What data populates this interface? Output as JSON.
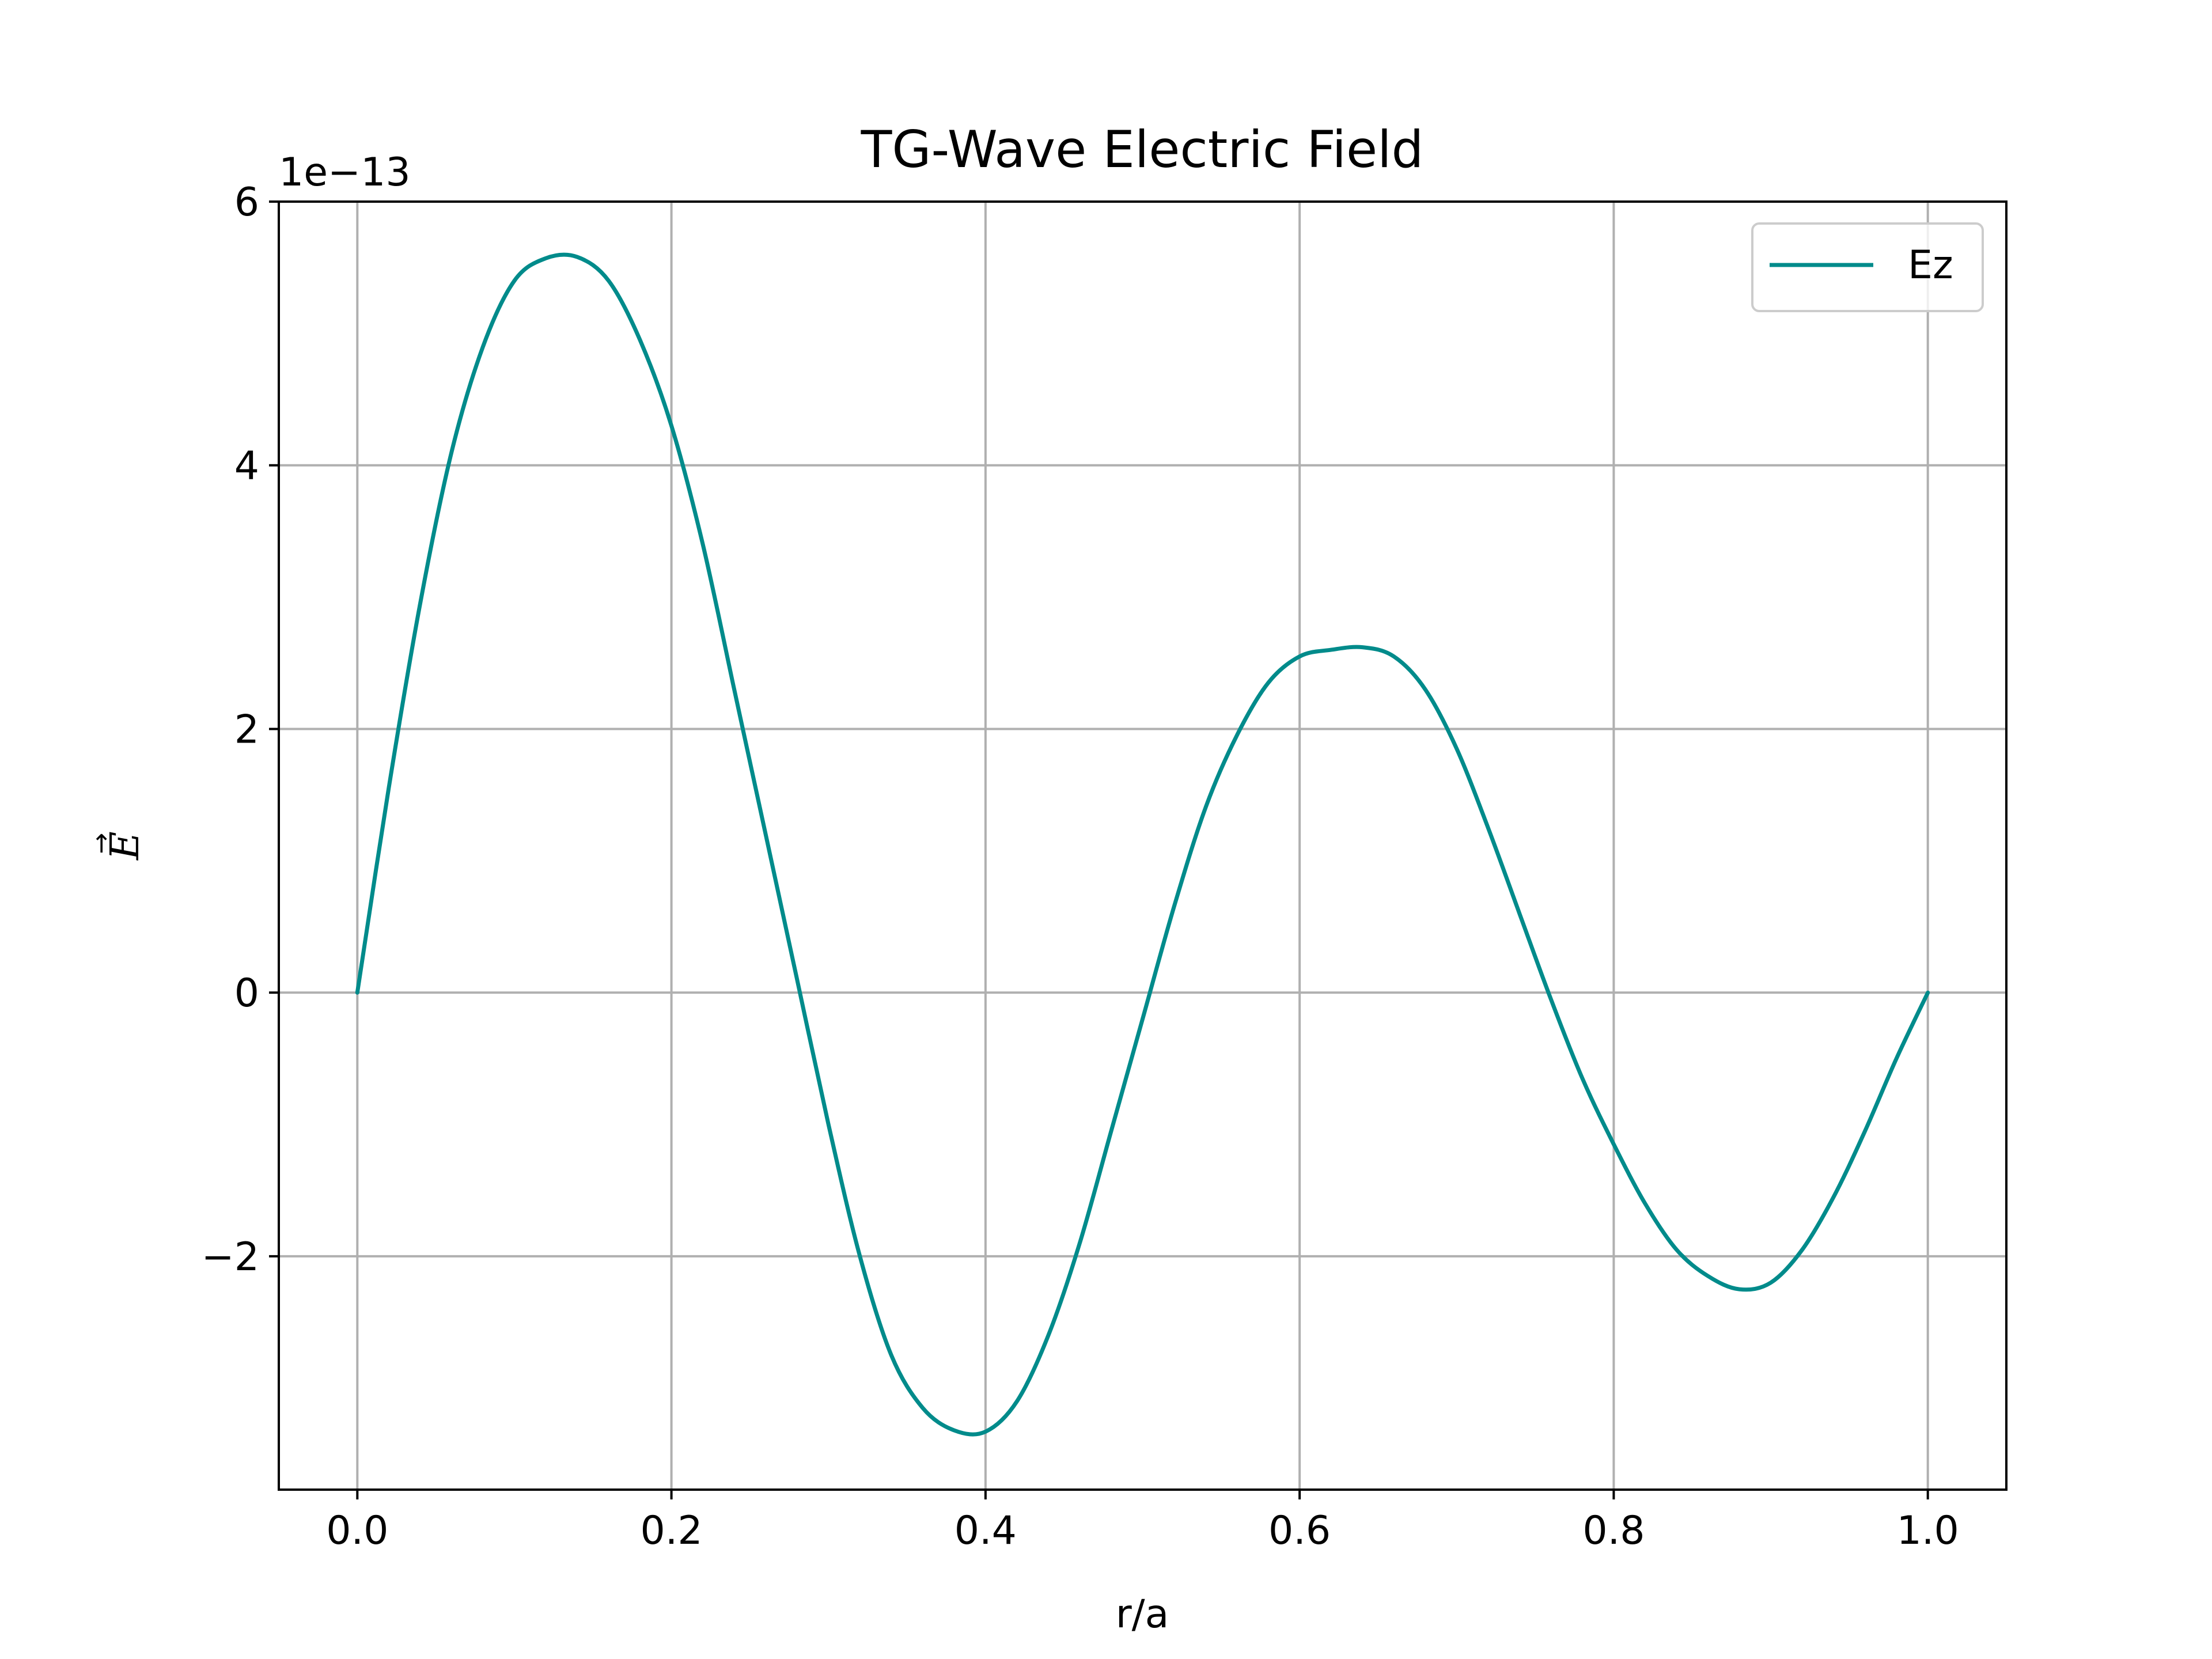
{
  "chart_data": {
    "type": "line",
    "title": "TG-Wave Electric Field",
    "xlabel": "r/a",
    "ylabel": "E",
    "ylabel_accent": "→",
    "y_offset_label": "1e−13",
    "xlim": [
      -0.05,
      1.05
    ],
    "ylim": [
      -3.77,
      6.0
    ],
    "x_ticks": [
      0.0,
      0.2,
      0.4,
      0.6,
      0.8,
      1.0
    ],
    "x_tick_labels": [
      "0.0",
      "0.2",
      "0.4",
      "0.6",
      "0.8",
      "1.0"
    ],
    "y_ticks": [
      -2,
      0,
      2,
      4,
      6
    ],
    "y_tick_labels": [
      "−2",
      "0",
      "2",
      "4",
      "6"
    ],
    "grid": true,
    "legend_position": "top-right",
    "series": [
      {
        "name": "Ez",
        "color": "#008b8b",
        "x": [
          0.0,
          0.02,
          0.04,
          0.06,
          0.08,
          0.1,
          0.12,
          0.14,
          0.16,
          0.18,
          0.2,
          0.22,
          0.24,
          0.26,
          0.28,
          0.3,
          0.32,
          0.34,
          0.36,
          0.38,
          0.4,
          0.42,
          0.44,
          0.46,
          0.48,
          0.5,
          0.52,
          0.54,
          0.56,
          0.58,
          0.6,
          0.62,
          0.64,
          0.66,
          0.68,
          0.7,
          0.72,
          0.74,
          0.76,
          0.78,
          0.8,
          0.82,
          0.84,
          0.86,
          0.88,
          0.9,
          0.92,
          0.94,
          0.96,
          0.98,
          1.0
        ],
        "values": [
          0.0,
          1.55,
          2.95,
          4.1,
          4.9,
          5.4,
          5.57,
          5.58,
          5.4,
          4.95,
          4.3,
          3.4,
          2.3,
          1.2,
          0.1,
          -1.0,
          -2.0,
          -2.75,
          -3.15,
          -3.32,
          -3.33,
          -3.1,
          -2.6,
          -1.9,
          -1.05,
          -0.2,
          0.65,
          1.4,
          1.95,
          2.35,
          2.55,
          2.6,
          2.62,
          2.55,
          2.3,
          1.85,
          1.25,
          0.6,
          -0.05,
          -0.65,
          -1.15,
          -1.6,
          -1.95,
          -2.15,
          -2.25,
          -2.2,
          -1.95,
          -1.55,
          -1.05,
          -0.5,
          0.0
        ]
      }
    ]
  }
}
